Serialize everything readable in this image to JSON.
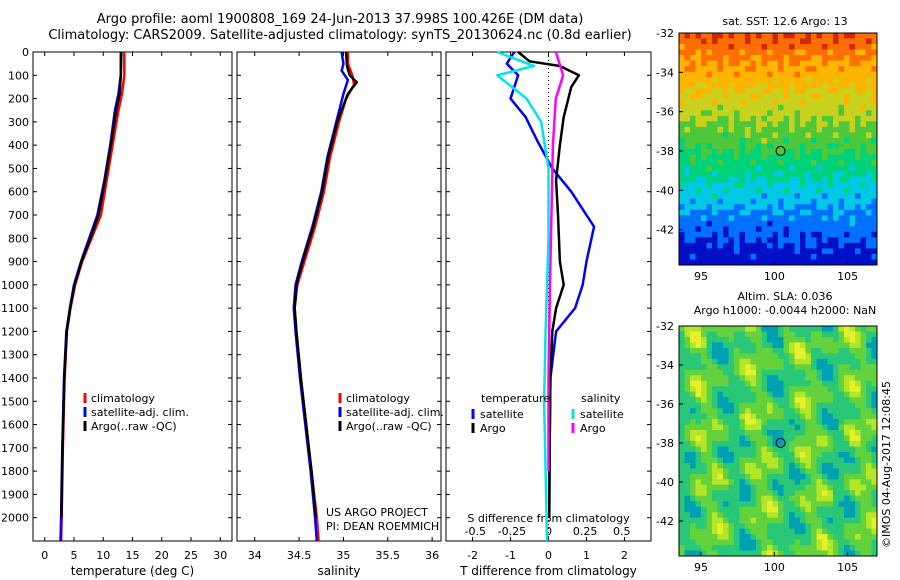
{
  "header": {
    "title_line1": "Argo profile: aoml 1900808_169 24-Jun-2013 37.998S 100.426E (DM data)",
    "title_line2": "Climatology: CARS2009. Satellite-adjusted climatology: synTS_20130624.nc (0.8d earlier)"
  },
  "sst_panel": {
    "title": "sat. SST: 12.6 Argo: 13"
  },
  "sla_panel": {
    "title_line1": "Altim. SLA: 0.036",
    "title_line2": "Argo h1000: -0.0044 h2000: NaN"
  },
  "credits": {
    "project": "US ARGO PROJECT",
    "pi": "PI: DEAN ROEMMICH",
    "imos": "©IMOS 04-Aug-2017 12:08:45"
  },
  "colors": {
    "climatology": "#ff0000",
    "satellite": "#0000ff",
    "argo": "#000000",
    "argo_salinity": "#ff00ff",
    "satellite_salinity": "#00e5e5"
  },
  "chart_data": [
    {
      "type": "line",
      "xlabel": "temperature (deg C)",
      "ylabel": "",
      "xlim": [
        -2,
        32
      ],
      "ylim": [
        2100,
        0
      ],
      "xticks": [
        "0",
        "5",
        "10",
        "15",
        "20",
        "25",
        "30"
      ],
      "xtick_values": [
        0,
        5,
        10,
        15,
        20,
        25,
        30
      ],
      "yticks": [
        "0",
        "100",
        "200",
        "300",
        "400",
        "500",
        "600",
        "700",
        "800",
        "900",
        "1000",
        "1100",
        "1200",
        "1300",
        "1400",
        "1500",
        "1600",
        "1700",
        "1800",
        "1900",
        "2000"
      ],
      "ytick_values": [
        0,
        100,
        200,
        300,
        400,
        500,
        600,
        700,
        800,
        900,
        1000,
        1100,
        1200,
        1300,
        1400,
        1500,
        1600,
        1700,
        1800,
        1900,
        2000
      ],
      "legend": [
        "climatology",
        "satellite-adj. clim.",
        "Argo(..raw -QC)"
      ],
      "series": [
        {
          "name": "climatology",
          "color": "#ff0000",
          "points": [
            [
              13.6,
              0
            ],
            [
              13.6,
              100
            ],
            [
              13.2,
              180
            ],
            [
              12.6,
              250
            ],
            [
              11.6,
              400
            ],
            [
              10.6,
              550
            ],
            [
              9.6,
              700
            ],
            [
              8.0,
              800
            ],
            [
              6.4,
              900
            ],
            [
              5.2,
              1000
            ],
            [
              4.4,
              1100
            ],
            [
              3.8,
              1200
            ],
            [
              3.4,
              1400
            ],
            [
              3.1,
              1700
            ],
            [
              2.9,
              2000
            ],
            [
              2.8,
              2100
            ]
          ]
        },
        {
          "name": "satellite-adj. clim.",
          "color": "#0000ff",
          "points": [
            [
              13.0,
              0
            ],
            [
              13.0,
              100
            ],
            [
              12.6,
              180
            ],
            [
              12.0,
              250
            ],
            [
              11.2,
              400
            ],
            [
              10.2,
              550
            ],
            [
              9.0,
              700
            ],
            [
              7.6,
              800
            ],
            [
              6.2,
              900
            ],
            [
              5.0,
              1000
            ],
            [
              4.3,
              1100
            ],
            [
              3.7,
              1200
            ],
            [
              3.3,
              1400
            ],
            [
              3.0,
              1700
            ],
            [
              2.8,
              2000
            ],
            [
              2.7,
              2100
            ]
          ]
        },
        {
          "name": "Argo(..raw -QC)",
          "color": "#000000",
          "points": [
            [
              13.1,
              0
            ],
            [
              13.0,
              100
            ],
            [
              12.8,
              180
            ],
            [
              12.2,
              250
            ],
            [
              11.3,
              400
            ],
            [
              10.3,
              550
            ],
            [
              9.2,
              700
            ],
            [
              7.8,
              800
            ],
            [
              6.3,
              900
            ],
            [
              5.1,
              1000
            ],
            [
              4.35,
              1100
            ],
            [
              3.75,
              1200
            ],
            [
              3.35,
              1400
            ],
            [
              3.05,
              1700
            ],
            [
              2.85,
              2000
            ]
          ]
        }
      ]
    },
    {
      "type": "line",
      "xlabel": "salinity",
      "ylabel": "",
      "xlim": [
        33.8,
        36.1
      ],
      "ylim": [
        2100,
        0
      ],
      "xticks": [
        "34",
        "34.5",
        "35",
        "35.5",
        "36"
      ],
      "xtick_values": [
        34,
        34.5,
        35,
        35.5,
        36
      ],
      "legend": [
        "climatology",
        "satellite-adj. clim.",
        "Argo(..raw -QC)"
      ],
      "series": [
        {
          "name": "climatology",
          "color": "#ff0000",
          "points": [
            [
              35.05,
              0
            ],
            [
              35.05,
              50
            ],
            [
              35.1,
              100
            ],
            [
              35.12,
              140
            ],
            [
              35.03,
              200
            ],
            [
              34.95,
              300
            ],
            [
              34.85,
              450
            ],
            [
              34.78,
              600
            ],
            [
              34.68,
              750
            ],
            [
              34.56,
              900
            ],
            [
              34.48,
              1000
            ],
            [
              34.45,
              1100
            ],
            [
              34.47,
              1200
            ],
            [
              34.52,
              1400
            ],
            [
              34.58,
              1600
            ],
            [
              34.64,
              1800
            ],
            [
              34.7,
              2000
            ],
            [
              34.72,
              2100
            ]
          ]
        },
        {
          "name": "satellite-adj. clim.",
          "color": "#0000ff",
          "points": [
            [
              34.98,
              0
            ],
            [
              35.0,
              50
            ],
            [
              34.98,
              80
            ],
            [
              35.05,
              120
            ],
            [
              35.0,
              180
            ],
            [
              34.92,
              300
            ],
            [
              34.82,
              450
            ],
            [
              34.75,
              600
            ],
            [
              34.65,
              750
            ],
            [
              34.53,
              900
            ],
            [
              34.46,
              1000
            ],
            [
              34.44,
              1100
            ],
            [
              34.46,
              1200
            ],
            [
              34.51,
              1400
            ],
            [
              34.57,
              1600
            ],
            [
              34.63,
              1800
            ],
            [
              34.68,
              2000
            ],
            [
              34.7,
              2100
            ]
          ]
        },
        {
          "name": "Argo(..raw -QC)",
          "color": "#000000",
          "points": [
            [
              35.03,
              0
            ],
            [
              35.04,
              60
            ],
            [
              35.07,
              100
            ],
            [
              35.15,
              130
            ],
            [
              35.05,
              180
            ],
            [
              34.93,
              300
            ],
            [
              34.83,
              450
            ],
            [
              34.76,
              600
            ],
            [
              34.66,
              750
            ],
            [
              34.54,
              900
            ],
            [
              34.47,
              1000
            ],
            [
              34.45,
              1100
            ],
            [
              34.47,
              1200
            ],
            [
              34.52,
              1400
            ],
            [
              34.58,
              1600
            ],
            [
              34.64,
              1800
            ],
            [
              34.69,
              2000
            ]
          ]
        }
      ]
    },
    {
      "type": "line",
      "xlabel": "T difference from climatology",
      "secondary_xlabel": "S difference from climatology",
      "xlim": [
        -2.7,
        2.7
      ],
      "ylim": [
        2100,
        0
      ],
      "xticks": [
        "-2",
        "-1",
        "0",
        "1",
        "2"
      ],
      "xtick_values": [
        -2,
        -1,
        0,
        1,
        2
      ],
      "secondary_xticks": [
        "-0.5",
        "-0.25",
        "0",
        "0.25",
        "0.5"
      ],
      "secondary_xtick_values": [
        -0.5,
        -0.25,
        0,
        0.25,
        0.5
      ],
      "legend_title_left": "temperature",
      "legend_title_right": "salinity",
      "legend": [
        "satellite",
        "Argo",
        "satellite",
        "Argo"
      ],
      "series": [
        {
          "name": "satellite",
          "quantity": "temperature",
          "color": "#0000ff",
          "points": [
            [
              -0.9,
              0
            ],
            [
              -1.1,
              50
            ],
            [
              -0.8,
              100
            ],
            [
              -1.0,
              200
            ],
            [
              -0.6,
              280
            ],
            [
              -0.3,
              380
            ],
            [
              0.1,
              500
            ],
            [
              0.6,
              600
            ],
            [
              1.2,
              750
            ],
            [
              1.0,
              900
            ],
            [
              0.9,
              1000
            ],
            [
              0.7,
              1100
            ],
            [
              0.2,
              1200
            ],
            [
              0.05,
              1400
            ],
            [
              0.03,
              1700
            ],
            [
              0.02,
              2000
            ]
          ]
        },
        {
          "name": "Argo",
          "quantity": "temperature",
          "color": "#000000",
          "points": [
            [
              -0.8,
              0
            ],
            [
              -0.5,
              40
            ],
            [
              0.3,
              60
            ],
            [
              0.8,
              100
            ],
            [
              0.6,
              150
            ],
            [
              0.4,
              280
            ],
            [
              0.3,
              400
            ],
            [
              0.2,
              550
            ],
            [
              0.25,
              700
            ],
            [
              0.3,
              900
            ],
            [
              0.4,
              1000
            ],
            [
              0.2,
              1100
            ],
            [
              0.1,
              1200
            ],
            [
              0.05,
              1400
            ],
            [
              0.03,
              1700
            ],
            [
              0.02,
              2000
            ]
          ]
        },
        {
          "name": "satellite",
          "quantity": "salinity",
          "color": "#00e5e5",
          "points": [
            [
              -0.35,
              0
            ],
            [
              -0.1,
              60
            ],
            [
              -0.35,
              100
            ],
            [
              -0.15,
              200
            ],
            [
              -0.05,
              300
            ],
            [
              0.0,
              500
            ],
            [
              0.0,
              800
            ],
            [
              -0.02,
              1200
            ],
            [
              -0.03,
              1500
            ],
            [
              -0.02,
              1800
            ],
            [
              -0.01,
              2100
            ]
          ]
        },
        {
          "name": "Argo",
          "quantity": "salinity",
          "color": "#ff00ff",
          "points": [
            [
              0.05,
              0
            ],
            [
              0.1,
              100
            ],
            [
              0.05,
              200
            ],
            [
              0.03,
              400
            ],
            [
              0.02,
              700
            ],
            [
              0.01,
              1000
            ],
            [
              0.0,
              1400
            ],
            [
              0.0,
              1800
            ]
          ]
        }
      ]
    },
    {
      "type": "heatmap",
      "title": "sat. SST: 12.6 Argo: 13",
      "xlim": [
        93.5,
        107
      ],
      "ylim": [
        -43.8,
        -32
      ],
      "xticks": [
        "95",
        "100",
        "105"
      ],
      "xtick_values": [
        95,
        100,
        105
      ],
      "yticks": [
        "-32",
        "-34",
        "-36",
        "-38",
        "-40",
        "-42"
      ],
      "ytick_values": [
        -32,
        -34,
        -36,
        -38,
        -40,
        -42
      ],
      "marker": {
        "lon": 100.426,
        "lat": -37.998
      }
    },
    {
      "type": "heatmap",
      "title": "Altim. SLA: 0.036",
      "xlim": [
        93.5,
        107
      ],
      "ylim": [
        -43.8,
        -32
      ],
      "xticks": [
        "95",
        "100",
        "105"
      ],
      "xtick_values": [
        95,
        100,
        105
      ],
      "yticks": [
        "-32",
        "-34",
        "-36",
        "-38",
        "-40",
        "-42"
      ],
      "ytick_values": [
        -32,
        -34,
        -36,
        -38,
        -40,
        -42
      ],
      "marker": {
        "lon": 100.426,
        "lat": -37.998
      }
    }
  ]
}
